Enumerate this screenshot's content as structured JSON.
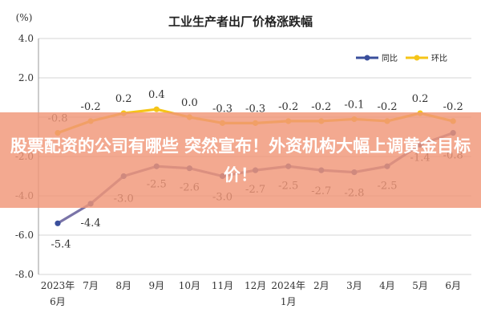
{
  "chart_data": {
    "type": "line",
    "title": "工业生产者出厂价格涨跌幅",
    "unit": "(%)",
    "categories": [
      [
        "2023年",
        "6月"
      ],
      [
        "7月"
      ],
      [
        "8月"
      ],
      [
        "9月"
      ],
      [
        "10月"
      ],
      [
        "11月"
      ],
      [
        "12月"
      ],
      [
        "2024年",
        "1月"
      ],
      [
        "2月"
      ],
      [
        "3月"
      ],
      [
        "4月"
      ],
      [
        "5月"
      ],
      [
        "6月"
      ]
    ],
    "ylim": [
      -8.0,
      4.0
    ],
    "yticks": [
      "4.0",
      "2.0",
      "",
      "-2.0",
      "-4.0",
      "-6.0",
      "-8.0"
    ],
    "ytick_values": [
      4,
      2,
      0,
      -2,
      -4,
      -6,
      -8
    ],
    "grid": "horizontal",
    "legend_position": "top-right",
    "series": [
      {
        "name": "同比",
        "color": "#3a4f9c",
        "line_color": "#7a74a8",
        "values": [
          -5.4,
          -4.4,
          -3.0,
          -2.5,
          -2.6,
          -3.0,
          -2.7,
          -2.5,
          -2.7,
          -2.8,
          -2.5,
          -1.4,
          -0.8
        ],
        "labels": [
          "-5.4",
          "-4.4",
          "-3.0",
          "-2.5",
          "-2.6",
          "-3.0",
          "-2.7",
          "-2.5",
          "-2.7",
          "-2.8",
          "-2.5",
          "-1.4",
          "-0.8"
        ]
      },
      {
        "name": "环比",
        "color": "#f5c518",
        "line_color": "#f5c518",
        "values": [
          -0.8,
          -0.2,
          0.2,
          0.4,
          0.0,
          -0.3,
          -0.3,
          -0.2,
          -0.2,
          -0.1,
          -0.2,
          0.2,
          -0.2
        ],
        "labels": [
          "-0.8",
          "-0.2",
          "0.2",
          "0.4",
          "0.0",
          "-0.3",
          "-0.3",
          "-0.2",
          "-0.2",
          "-0.1",
          "-0.2",
          "0.2",
          "-0.2"
        ]
      }
    ]
  },
  "banner": {
    "text": "股票配资的公司有哪些 突然宣布！外资机构大幅上调黄金目标价！",
    "background": "#f0967a"
  }
}
